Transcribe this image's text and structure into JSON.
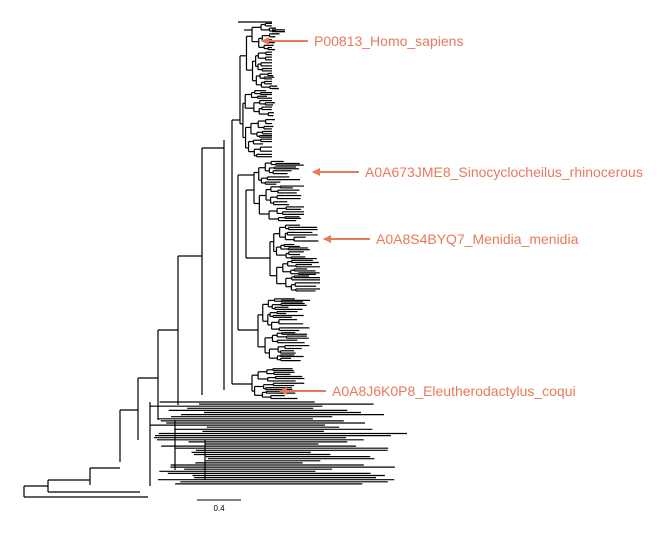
{
  "tree": {
    "branch_color": "#000000",
    "highlight_color": "#e8795a",
    "annotations": [
      {
        "id": "homo",
        "label": "P00813_Homo_sapiens"
      },
      {
        "id": "sino",
        "label": "A0A673JME8_Sinocyclocheilus_rhinocerous"
      },
      {
        "id": "meni",
        "label": "A0A8S4BYQ7_Menidia_menidia"
      },
      {
        "id": "eleu",
        "label": "A0A8J6K0P8_Eleutherodactylus_coqui"
      }
    ]
  },
  "scale_bar": {
    "value": 0.4,
    "label": "0.4"
  }
}
